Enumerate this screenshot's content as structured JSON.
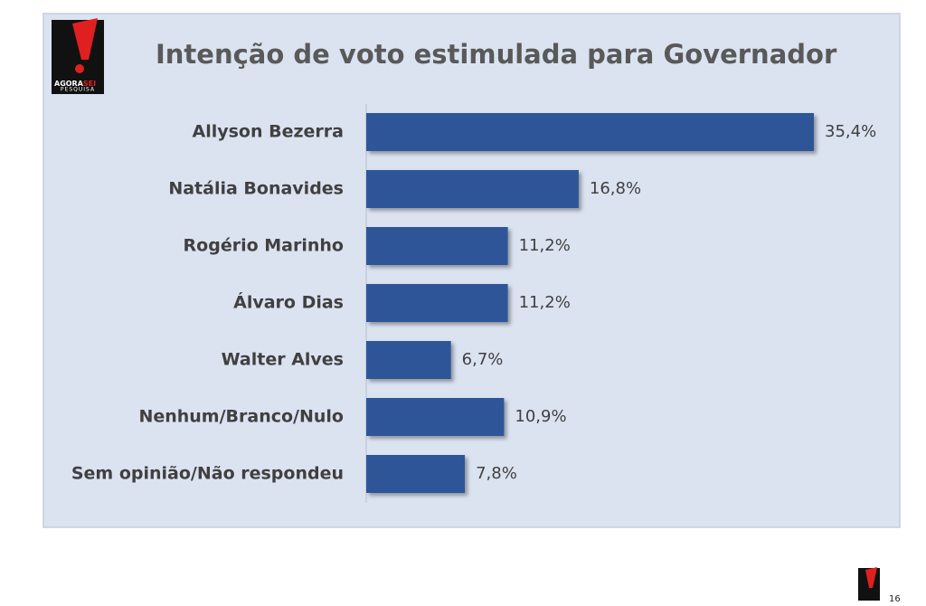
{
  "chart_data": {
    "type": "bar",
    "orientation": "horizontal",
    "title": "Intenção de voto estimulada para Governador",
    "categories": [
      "Allyson Bezerra",
      "Natália Bonavides",
      "Rogério Marinho",
      "Álvaro Dias",
      "Walter Alves",
      "Nenhum/Branco/Nulo",
      "Sem opinião/Não respondeu"
    ],
    "values": [
      35.4,
      16.8,
      11.2,
      11.2,
      6.7,
      10.9,
      7.8
    ],
    "value_labels": [
      "35,4%",
      "16,8%",
      "11,2%",
      "11,2%",
      "6,7%",
      "10,9%",
      "7,8%"
    ],
    "color": "#2f5597"
  },
  "logo": {
    "brand": "AGORA",
    "brand_accent": "SEI",
    "tagline": "PESQUISA"
  },
  "page_number": 16
}
